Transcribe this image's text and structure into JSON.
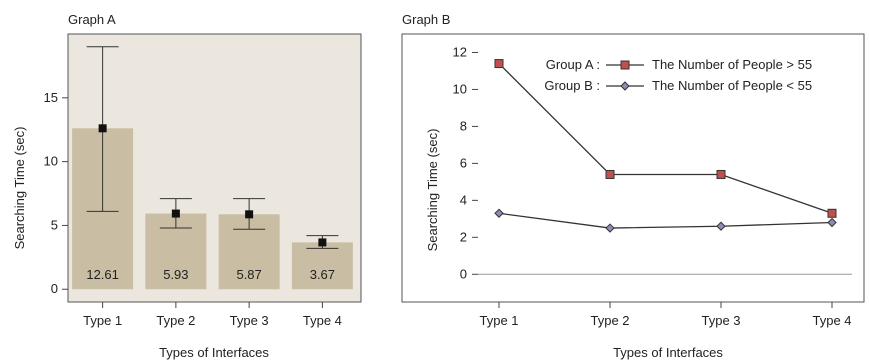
{
  "chart_data": [
    {
      "type": "bar",
      "title": "Graph A",
      "xlabel": "Types of Interfaces",
      "ylabel": "Searching Time (sec)",
      "ylim": [
        -1,
        20
      ],
      "yticks": [
        0,
        5,
        10,
        15
      ],
      "categories": [
        "Type 1",
        "Type 2",
        "Type 3",
        "Type 4"
      ],
      "values": [
        12.61,
        5.93,
        5.87,
        3.67
      ],
      "value_labels": [
        "12.61",
        "5.93",
        "5.87",
        "3.67"
      ],
      "error_low": [
        6.1,
        4.8,
        4.7,
        3.2
      ],
      "error_high": [
        19.0,
        7.1,
        7.1,
        4.2
      ],
      "bar_color": "#c9bda3",
      "background": "#ece7de",
      "grid": false
    },
    {
      "type": "line",
      "title": "Graph B",
      "xlabel": "Types of Interfaces",
      "ylabel": "Searching Time (sec)",
      "ylim": [
        -1.5,
        13
      ],
      "yticks": [
        0,
        2,
        4,
        6,
        8,
        10,
        12
      ],
      "categories": [
        "Type 1",
        "Type 2",
        "Type 3",
        "Type 4"
      ],
      "legend_position": "top-right",
      "series": [
        {
          "name": "Group A :",
          "legend_desc": "The Number of People > 55",
          "values": [
            11.4,
            5.4,
            5.4,
            3.3
          ],
          "marker": "square",
          "color": "#c0504d"
        },
        {
          "name": "Group B :",
          "legend_desc": "The Number of People < 55",
          "values": [
            3.3,
            2.5,
            2.6,
            2.8
          ],
          "marker": "diamond",
          "color": "#8c8cb4"
        }
      ],
      "grid": false
    }
  ]
}
